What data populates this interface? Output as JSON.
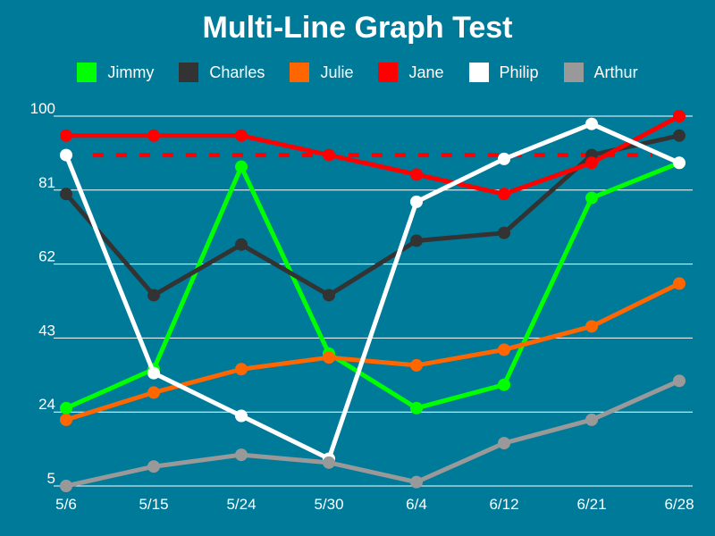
{
  "chart_data": {
    "type": "line",
    "title": "Multi-Line Graph Test",
    "xlabel": "",
    "ylabel": "",
    "categories": [
      "5/6",
      "5/15",
      "5/24",
      "5/30",
      "6/4",
      "6/12",
      "6/21",
      "6/28"
    ],
    "ylim": [
      5,
      100
    ],
    "yticks": [
      5,
      24,
      43,
      62,
      81,
      100
    ],
    "grid": true,
    "legend_position": "top",
    "series": [
      {
        "name": "Jimmy",
        "color": "#00ff00",
        "values": [
          25,
          35,
          87,
          39,
          25,
          31,
          79,
          88
        ]
      },
      {
        "name": "Charles",
        "color": "#333333",
        "values": [
          80,
          54,
          67,
          54,
          68,
          70,
          90,
          95
        ]
      },
      {
        "name": "Julie",
        "color": "#ff6600",
        "values": [
          22,
          29,
          35,
          38,
          36,
          40,
          46,
          57
        ]
      },
      {
        "name": "Jane",
        "color": "#ff0000",
        "values": [
          95,
          95,
          95,
          90,
          85,
          80,
          88,
          100
        ]
      },
      {
        "name": "Philip",
        "color": "#ffffff",
        "values": [
          90,
          34,
          23,
          12,
          78,
          89,
          98,
          88
        ]
      },
      {
        "name": "Arthur",
        "color": "#999999",
        "values": [
          5,
          10,
          13,
          11,
          6,
          16,
          22,
          32
        ]
      }
    ],
    "reference_line": {
      "value": 90,
      "color": "#ff0000",
      "style": "dashed"
    }
  }
}
